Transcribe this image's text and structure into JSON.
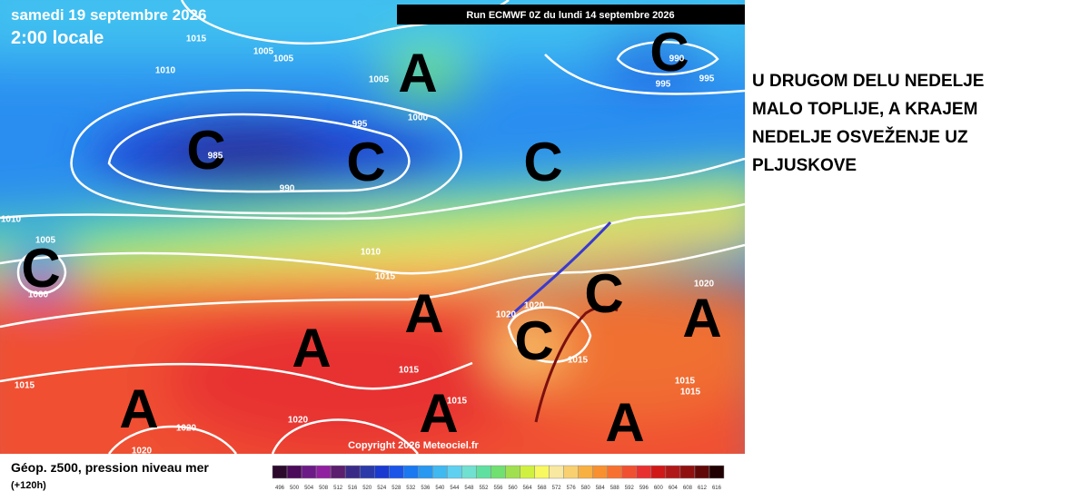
{
  "header": {
    "date": "samedi 19 septembre 2026",
    "time": "2:00 locale",
    "run": "Run ECMWF 0Z du lundi 14 septembre 2026"
  },
  "copyright": "Copyright 2026 Meteociel.fr",
  "pressure_centers": [
    "A",
    "C",
    "C",
    "C",
    "C",
    "C",
    "A",
    "A",
    "C",
    "A",
    "C",
    "A",
    "A",
    "A"
  ],
  "isobar_labels": [
    "1015",
    "1005",
    "1005",
    "1010",
    "1005",
    "1000",
    "995",
    "985",
    "990",
    "990",
    "995",
    "995",
    "1010",
    "1005",
    "1000",
    "1010",
    "1015",
    "1020",
    "1020",
    "1020",
    "1015",
    "1015",
    "1015",
    "1015",
    "1015",
    "1015",
    "1020",
    "1020",
    "1020"
  ],
  "caption": [
    "U DRUGOM DELU NEDELJE",
    "MALO TOPLIJE, A KRAJEM",
    "NEDELJE OSVEŽENJE UZ",
    "PLJUSKOVE"
  ],
  "legend": {
    "title": "Géop. z500, pression niveau mer",
    "subtitle": "(+120h)",
    "ticks": [
      496,
      500,
      504,
      508,
      512,
      516,
      520,
      524,
      528,
      532,
      536,
      540,
      544,
      548,
      552,
      556,
      560,
      564,
      568,
      572,
      576,
      580,
      584,
      588,
      592,
      596,
      600,
      604,
      608,
      612,
      616
    ],
    "colors": [
      "#2b0a2e",
      "#4b0a5a",
      "#6c1a86",
      "#9020a0",
      "#5c1e6e",
      "#3a2a88",
      "#2a3aa8",
      "#1a3ad0",
      "#1a55e8",
      "#1a78f0",
      "#2898f0",
      "#40b8f0",
      "#60d0f0",
      "#70e0d0",
      "#60e0a0",
      "#70e070",
      "#a0e050",
      "#d0f040",
      "#f8f860",
      "#f8e8a0",
      "#f8d070",
      "#f8b040",
      "#f89030",
      "#f87030",
      "#f05030",
      "#e83030",
      "#d01818",
      "#b01818",
      "#901010",
      "#600808",
      "#200000"
    ]
  }
}
